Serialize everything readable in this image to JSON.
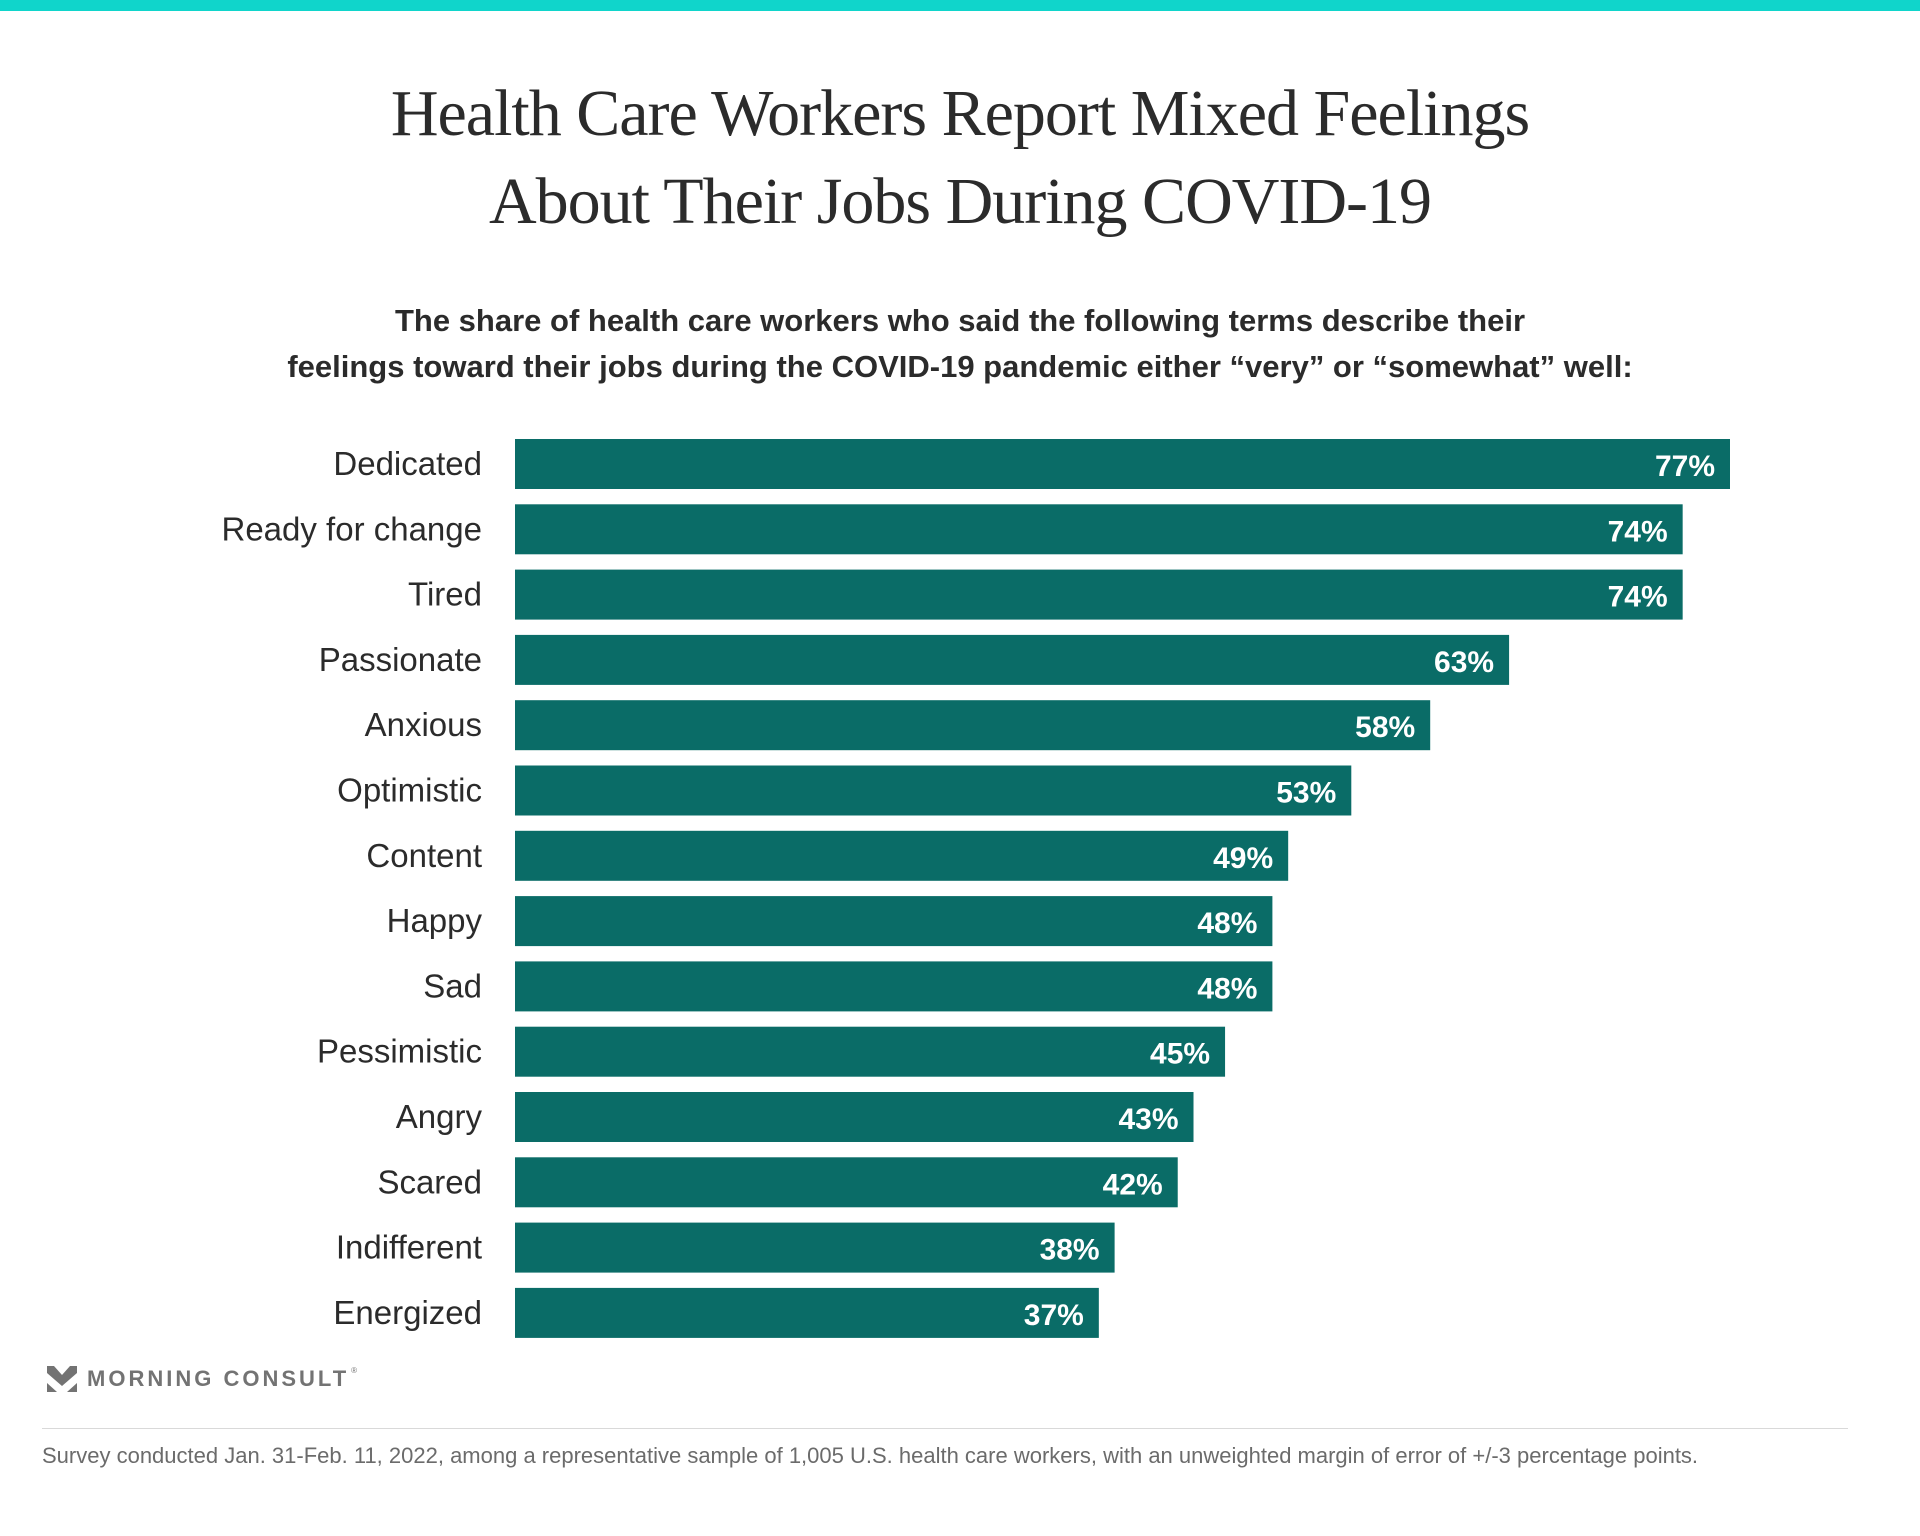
{
  "header": {
    "title_line1": "Health Care Workers Report Mixed Feelings",
    "title_line2": "About Their Jobs During COVID-19",
    "subtitle_line1": "The share of health care workers who said the following terms describe their",
    "subtitle_line2": "feelings toward their jobs during the COVID-19 pandemic either “very” or “somewhat” well:"
  },
  "colors": {
    "accent_bar": "#10d5cb",
    "bar": "#0a6c67",
    "text": "#2b2b2b",
    "value_label": "#ffffff",
    "footer_text": "#6b6b6b"
  },
  "chart_data": {
    "type": "bar",
    "orientation": "horizontal",
    "title": "Health Care Workers Report Mixed Feelings About Their Jobs During COVID-19",
    "subtitle": "The share of health care workers who said the following terms describe their feelings toward their jobs during the COVID-19 pandemic either “very” or “somewhat” well:",
    "categories": [
      "Dedicated",
      "Ready for change",
      "Tired",
      "Passionate",
      "Anxious",
      "Optimistic",
      "Content",
      "Happy",
      "Sad",
      "Pessimistic",
      "Angry",
      "Scared",
      "Indifferent",
      "Energized"
    ],
    "values": [
      77,
      74,
      74,
      63,
      58,
      53,
      49,
      48,
      48,
      45,
      43,
      42,
      38,
      37
    ],
    "value_labels": [
      "77%",
      "74%",
      "74%",
      "63%",
      "58%",
      "53%",
      "49%",
      "48%",
      "48%",
      "45%",
      "43%",
      "42%",
      "38%",
      "37%"
    ],
    "unit": "%",
    "xlabel": "",
    "ylabel": "",
    "xlim": [
      0,
      77
    ],
    "grid": false,
    "legend": "none"
  },
  "footer": {
    "logo_text": "MORNING CONSULT",
    "logo_mark": "®",
    "note": "Survey conducted Jan. 31-Feb. 11, 2022, among a representative sample of 1,005 U.S. health care workers, with an unweighted margin of error of +/-3 percentage points."
  }
}
